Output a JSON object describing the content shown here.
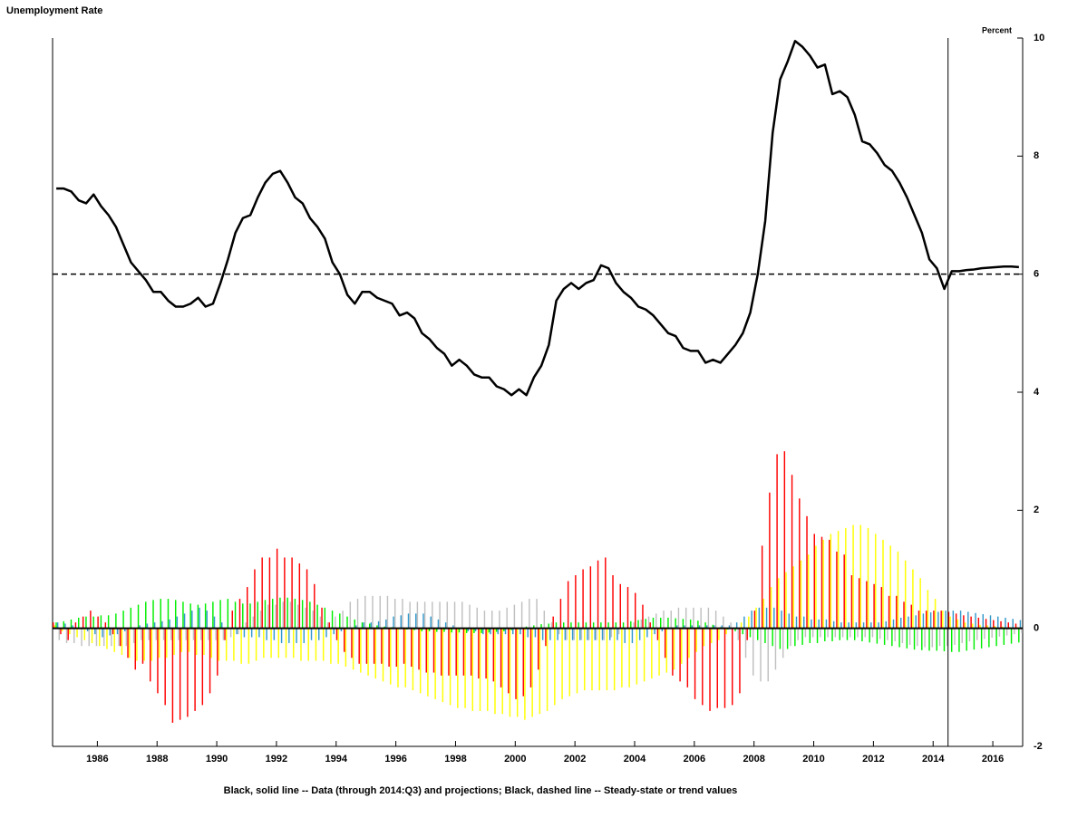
{
  "chart_data": {
    "type": "combo",
    "title": "Unemployment Rate",
    "y_axis_label": "Percent",
    "caption": "Black, solid line -- Data (through 2014:Q3) and projections; Black, dashed line -- Steady-state or trend values",
    "xlim": [
      1984.5,
      2017.0
    ],
    "ylim": [
      -2,
      10
    ],
    "xticks": [
      1986,
      1988,
      1990,
      1992,
      1994,
      1996,
      1998,
      2000,
      2002,
      2004,
      2006,
      2008,
      2010,
      2012,
      2014,
      2016
    ],
    "yticks": [
      -2,
      0,
      2,
      4,
      6,
      8,
      10
    ],
    "trend_value": 6,
    "projection_start": 2014.5,
    "x": [
      1984.625,
      1984.875,
      1985.125,
      1985.375,
      1985.625,
      1985.875,
      1986.125,
      1986.375,
      1986.625,
      1986.875,
      1987.125,
      1987.375,
      1987.625,
      1987.875,
      1988.125,
      1988.375,
      1988.625,
      1988.875,
      1989.125,
      1989.375,
      1989.625,
      1989.875,
      1990.125,
      1990.375,
      1990.625,
      1990.875,
      1991.125,
      1991.375,
      1991.625,
      1991.875,
      1992.125,
      1992.375,
      1992.625,
      1992.875,
      1993.125,
      1993.375,
      1993.625,
      1993.875,
      1994.125,
      1994.375,
      1994.625,
      1994.875,
      1995.125,
      1995.375,
      1995.625,
      1995.875,
      1996.125,
      1996.375,
      1996.625,
      1996.875,
      1997.125,
      1997.375,
      1997.625,
      1997.875,
      1998.125,
      1998.375,
      1998.625,
      1998.875,
      1999.125,
      1999.375,
      1999.625,
      1999.875,
      2000.125,
      2000.375,
      2000.625,
      2000.875,
      2001.125,
      2001.375,
      2001.625,
      2001.875,
      2002.125,
      2002.375,
      2002.625,
      2002.875,
      2003.125,
      2003.375,
      2003.625,
      2003.875,
      2004.125,
      2004.375,
      2004.625,
      2004.875,
      2005.125,
      2005.375,
      2005.625,
      2005.875,
      2006.125,
      2006.375,
      2006.625,
      2006.875,
      2007.125,
      2007.375,
      2007.625,
      2007.875,
      2008.125,
      2008.375,
      2008.625,
      2008.875,
      2009.125,
      2009.375,
      2009.625,
      2009.875,
      2010.125,
      2010.375,
      2010.625,
      2010.875,
      2011.125,
      2011.375,
      2011.625,
      2011.875,
      2012.125,
      2012.375,
      2012.625,
      2012.875,
      2013.125,
      2013.375,
      2013.625,
      2013.875,
      2014.125,
      2014.375,
      2014.625,
      2014.875,
      2015.125,
      2015.375,
      2015.625,
      2015.875,
      2016.125,
      2016.375,
      2016.625,
      2016.875
    ],
    "series": [
      {
        "type": "line",
        "color": "#000000",
        "values": [
          7.45,
          7.45,
          7.4,
          7.25,
          7.2,
          7.35,
          7.15,
          7.0,
          6.8,
          6.5,
          6.2,
          6.05,
          5.9,
          5.7,
          5.7,
          5.55,
          5.45,
          5.45,
          5.5,
          5.6,
          5.45,
          5.5,
          5.85,
          6.25,
          6.7,
          6.95,
          7.0,
          7.3,
          7.55,
          7.7,
          7.75,
          7.55,
          7.3,
          7.2,
          6.95,
          6.8,
          6.6,
          6.2,
          6.0,
          5.65,
          5.5,
          5.7,
          5.7,
          5.6,
          5.55,
          5.5,
          5.3,
          5.35,
          5.25,
          5.0,
          4.9,
          4.75,
          4.65,
          4.45,
          4.55,
          4.45,
          4.3,
          4.25,
          4.25,
          4.1,
          4.05,
          3.95,
          4.05,
          3.95,
          4.25,
          4.45,
          4.8,
          5.55,
          5.75,
          5.85,
          5.75,
          5.85,
          5.9,
          6.15,
          6.1,
          5.85,
          5.7,
          5.6,
          5.45,
          5.4,
          5.3,
          5.15,
          5.0,
          4.95,
          4.75,
          4.7,
          4.7,
          4.5,
          4.55,
          4.5,
          4.65,
          4.8,
          5.0,
          5.35,
          6.0,
          6.9,
          8.4,
          9.3,
          9.6,
          9.95,
          9.85,
          9.7,
          9.5,
          9.55,
          9.05,
          9.1,
          9.0,
          8.7,
          8.25,
          8.2,
          8.05,
          7.85,
          7.75,
          7.55,
          7.3,
          7.0,
          6.7,
          6.25,
          6.1,
          5.75,
          6.05,
          6.05,
          6.07,
          6.08,
          6.1,
          6.11,
          6.12,
          6.13,
          6.13,
          6.12
        ]
      },
      {
        "type": "bar",
        "color": "#ff0000",
        "values": [
          0.1,
          -0.1,
          -0.2,
          0.1,
          0.2,
          0.3,
          0.2,
          0.1,
          -0.1,
          -0.3,
          -0.5,
          -0.7,
          -0.6,
          -0.9,
          -1.1,
          -1.3,
          -1.6,
          -1.55,
          -1.5,
          -1.4,
          -1.3,
          -1.1,
          -0.8,
          -0.2,
          0.3,
          0.5,
          0.7,
          1.0,
          1.2,
          1.2,
          1.35,
          1.2,
          1.2,
          1.1,
          1.0,
          0.75,
          0.35,
          0.1,
          -0.2,
          -0.4,
          -0.5,
          -0.6,
          -0.6,
          -0.6,
          -0.6,
          -0.65,
          -0.65,
          -0.6,
          -0.65,
          -0.7,
          -0.75,
          -0.75,
          -0.8,
          -0.8,
          -0.8,
          -0.8,
          -0.8,
          -0.85,
          -0.85,
          -0.9,
          -1.0,
          -1.1,
          -1.2,
          -1.15,
          -1.0,
          -0.7,
          -0.3,
          0.2,
          0.5,
          0.8,
          0.9,
          1.0,
          1.05,
          1.15,
          1.2,
          0.9,
          0.75,
          0.7,
          0.6,
          0.4,
          0.1,
          -0.2,
          -0.5,
          -0.8,
          -0.9,
          -1.0,
          -1.2,
          -1.3,
          -1.4,
          -1.35,
          -1.35,
          -1.3,
          -1.1,
          -0.2,
          0.3,
          1.4,
          2.3,
          2.95,
          3.0,
          2.6,
          2.2,
          1.9,
          1.6,
          1.55,
          1.5,
          1.3,
          1.25,
          0.9,
          0.85,
          0.8,
          0.75,
          0.7,
          0.55,
          0.55,
          0.45,
          0.4,
          0.3,
          0.3,
          0.3,
          0.3,
          0.28,
          0.25,
          0.22,
          0.2,
          0.18,
          0.16,
          0.14,
          0.12,
          0.1,
          0.08
        ]
      },
      {
        "type": "bar",
        "color": "#ffff00",
        "values": [
          0.05,
          -0.05,
          -0.1,
          -0.15,
          -0.2,
          -0.25,
          -0.3,
          -0.35,
          -0.4,
          -0.45,
          -0.5,
          -0.55,
          -0.55,
          -0.55,
          -0.5,
          -0.5,
          -0.45,
          -0.4,
          -0.4,
          -0.45,
          -0.45,
          -0.5,
          -0.55,
          -0.55,
          -0.55,
          -0.6,
          -0.6,
          -0.55,
          -0.5,
          -0.5,
          -0.5,
          -0.5,
          -0.5,
          -0.55,
          -0.55,
          -0.55,
          -0.55,
          -0.6,
          -0.6,
          -0.65,
          -0.7,
          -0.75,
          -0.8,
          -0.85,
          -0.9,
          -0.95,
          -1.0,
          -1.0,
          -1.05,
          -1.1,
          -1.15,
          -1.2,
          -1.25,
          -1.3,
          -1.35,
          -1.35,
          -1.4,
          -1.4,
          -1.4,
          -1.45,
          -1.45,
          -1.5,
          -1.5,
          -1.55,
          -1.5,
          -1.45,
          -1.4,
          -1.3,
          -1.2,
          -1.15,
          -1.1,
          -1.05,
          -1.05,
          -1.05,
          -1.05,
          -1.05,
          -1.0,
          -1.0,
          -0.95,
          -0.9,
          -0.85,
          -0.8,
          -0.75,
          -0.7,
          -0.6,
          -0.5,
          -0.4,
          -0.3,
          -0.25,
          -0.2,
          -0.1,
          0.0,
          0.1,
          0.2,
          0.35,
          0.5,
          0.7,
          0.85,
          0.95,
          1.05,
          1.15,
          1.25,
          1.4,
          1.5,
          1.6,
          1.65,
          1.7,
          1.75,
          1.75,
          1.7,
          1.6,
          1.5,
          1.4,
          1.3,
          1.15,
          1.0,
          0.85,
          0.65,
          0.5,
          0.3,
          0.2,
          0.15,
          0.1,
          0.08,
          0.06,
          0.05,
          0.04,
          0.03,
          0.02,
          0.02
        ]
      },
      {
        "type": "bar",
        "color": "#00ee00",
        "values": [
          0.1,
          0.12,
          0.15,
          0.18,
          0.2,
          0.2,
          0.22,
          0.22,
          0.25,
          0.3,
          0.35,
          0.4,
          0.45,
          0.48,
          0.5,
          0.5,
          0.48,
          0.45,
          0.42,
          0.4,
          0.42,
          0.45,
          0.48,
          0.5,
          0.45,
          0.42,
          0.42,
          0.45,
          0.48,
          0.5,
          0.52,
          0.52,
          0.5,
          0.48,
          0.45,
          0.4,
          0.35,
          0.3,
          0.25,
          0.2,
          0.15,
          0.1,
          0.08,
          0.05,
          0.03,
          0.02,
          0.0,
          -0.02,
          -0.03,
          -0.05,
          -0.05,
          -0.06,
          -0.06,
          -0.07,
          -0.07,
          -0.08,
          -0.08,
          -0.08,
          -0.07,
          -0.06,
          -0.05,
          -0.03,
          0.0,
          0.03,
          0.05,
          0.07,
          0.08,
          0.1,
          0.1,
          0.1,
          0.1,
          0.1,
          0.1,
          0.1,
          0.1,
          0.1,
          0.1,
          0.12,
          0.14,
          0.16,
          0.18,
          0.18,
          0.18,
          0.17,
          0.16,
          0.15,
          0.13,
          0.1,
          0.06,
          0.02,
          -0.02,
          -0.05,
          -0.1,
          -0.15,
          -0.2,
          -0.25,
          -0.3,
          -0.35,
          -0.35,
          -0.3,
          -0.28,
          -0.25,
          -0.25,
          -0.22,
          -0.22,
          -0.2,
          -0.2,
          -0.2,
          -0.22,
          -0.24,
          -0.26,
          -0.28,
          -0.3,
          -0.32,
          -0.34,
          -0.36,
          -0.37,
          -0.38,
          -0.38,
          -0.39,
          -0.4,
          -0.4,
          -0.38,
          -0.36,
          -0.34,
          -0.32,
          -0.3,
          -0.28,
          -0.26,
          -0.24
        ]
      },
      {
        "type": "bar",
        "color": "#3399cc",
        "values": [
          0.1,
          0.08,
          0.05,
          0.0,
          -0.05,
          -0.1,
          -0.15,
          -0.12,
          -0.1,
          -0.05,
          0.0,
          0.05,
          0.08,
          0.1,
          0.12,
          0.15,
          0.2,
          0.25,
          0.3,
          0.35,
          0.3,
          0.2,
          0.1,
          0.0,
          -0.1,
          -0.15,
          -0.15,
          -0.15,
          -0.2,
          -0.2,
          -0.25,
          -0.25,
          -0.25,
          -0.25,
          -0.2,
          -0.2,
          -0.15,
          -0.1,
          -0.05,
          0.0,
          0.05,
          0.1,
          0.1,
          0.12,
          0.15,
          0.2,
          0.22,
          0.25,
          0.25,
          0.25,
          0.2,
          0.15,
          0.1,
          0.05,
          0.0,
          -0.05,
          -0.05,
          -0.1,
          -0.1,
          -0.1,
          -0.1,
          -0.1,
          -0.1,
          -0.15,
          -0.15,
          -0.2,
          -0.2,
          -0.2,
          -0.2,
          -0.2,
          -0.2,
          -0.2,
          -0.2,
          -0.2,
          -0.2,
          -0.2,
          -0.25,
          -0.25,
          -0.2,
          -0.15,
          -0.1,
          -0.05,
          0.0,
          0.05,
          0.05,
          0.05,
          0.05,
          0.05,
          0.05,
          0.05,
          0.05,
          0.1,
          0.2,
          0.3,
          0.35,
          0.35,
          0.35,
          0.3,
          0.25,
          0.2,
          0.2,
          0.15,
          0.15,
          0.15,
          0.12,
          0.1,
          0.1,
          0.1,
          0.1,
          0.1,
          0.1,
          0.12,
          0.15,
          0.18,
          0.2,
          0.22,
          0.25,
          0.27,
          0.28,
          0.3,
          0.3,
          0.3,
          0.28,
          0.26,
          0.24,
          0.22,
          0.2,
          0.18,
          0.16,
          0.14
        ]
      },
      {
        "type": "bar",
        "color": "#c0c0c0",
        "values": [
          -0.2,
          -0.25,
          -0.25,
          -0.3,
          -0.3,
          -0.3,
          -0.3,
          -0.3,
          -0.3,
          -0.3,
          -0.25,
          -0.2,
          -0.2,
          -0.2,
          -0.2,
          -0.2,
          -0.2,
          -0.2,
          -0.2,
          -0.2,
          -0.2,
          -0.2,
          -0.2,
          -0.15,
          -0.1,
          0.1,
          0.2,
          0.3,
          0.4,
          0.4,
          0.45,
          0.45,
          0.4,
          0.35,
          0.3,
          0.2,
          0.1,
          0.2,
          0.3,
          0.45,
          0.5,
          0.55,
          0.55,
          0.55,
          0.55,
          0.5,
          0.5,
          0.45,
          0.45,
          0.45,
          0.45,
          0.45,
          0.45,
          0.45,
          0.45,
          0.4,
          0.35,
          0.3,
          0.3,
          0.3,
          0.35,
          0.4,
          0.45,
          0.5,
          0.5,
          0.3,
          0.1,
          -0.1,
          -0.2,
          -0.2,
          -0.2,
          -0.2,
          -0.2,
          -0.2,
          -0.15,
          -0.1,
          0.0,
          0.1,
          0.15,
          0.2,
          0.25,
          0.3,
          0.3,
          0.35,
          0.35,
          0.35,
          0.35,
          0.35,
          0.3,
          0.2,
          0.1,
          -0.2,
          -0.5,
          -0.8,
          -0.9,
          -0.9,
          -0.7,
          -0.5,
          -0.3,
          -0.2,
          -0.15,
          -0.15,
          -0.15,
          -0.15,
          -0.15,
          -0.15,
          -0.15,
          -0.15,
          -0.15,
          -0.15,
          -0.18,
          -0.2,
          -0.22,
          -0.25,
          -0.28,
          -0.3,
          -0.32,
          -0.32,
          -0.3,
          -0.3,
          -0.28,
          -0.25,
          -0.22,
          -0.2,
          -0.18,
          -0.16,
          -0.14,
          -0.12,
          -0.1,
          -0.08
        ]
      }
    ]
  }
}
